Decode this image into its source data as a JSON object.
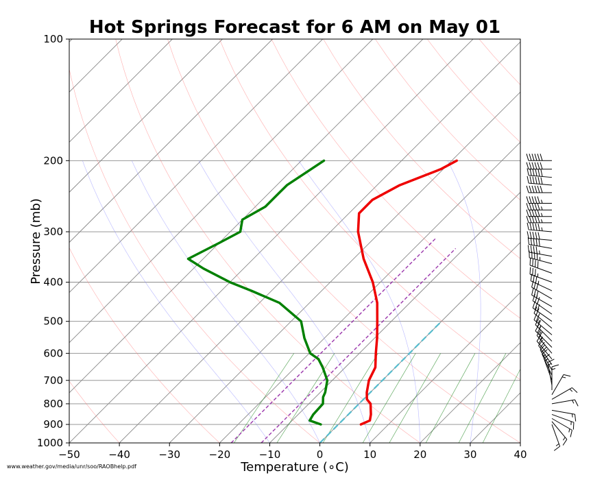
{
  "chart_data": {
    "type": "line",
    "subtype": "skew-T log-P sounding",
    "title": "Hot Springs Forecast for 6 AM on May 01",
    "xlabel": "Temperature (∘C)",
    "ylabel": "Pressure (mb)",
    "xlim": [
      -50,
      40
    ],
    "ylim": [
      1000,
      100
    ],
    "y_scale": "log",
    "grid": true,
    "x_ticks": [
      -50,
      -40,
      -30,
      -20,
      -10,
      0,
      10,
      20,
      30,
      40
    ],
    "x_tick_labels": [
      "−50",
      "−40",
      "−30",
      "−20",
      "−10",
      "0",
      "10",
      "20",
      "30",
      "40"
    ],
    "y_ticks": [
      1000,
      900,
      800,
      700,
      600,
      500,
      400,
      300,
      200,
      100
    ],
    "y_tick_labels": [
      "1000",
      "900",
      "800",
      "700",
      "600",
      "500",
      "400",
      "300",
      "200",
      "100"
    ],
    "series": [
      {
        "key": "temperature",
        "color": "#ee0000",
        "points": [
          [
            900,
            4.5
          ],
          [
            880,
            5.5
          ],
          [
            850,
            4.5
          ],
          [
            800,
            2.3
          ],
          [
            780,
            0.7
          ],
          [
            750,
            -0.7
          ],
          [
            700,
            -2.7
          ],
          [
            650,
            -4
          ],
          [
            600,
            -6.7
          ],
          [
            550,
            -9.5
          ],
          [
            500,
            -12.8
          ],
          [
            450,
            -16.5
          ],
          [
            400,
            -21.5
          ],
          [
            350,
            -28
          ],
          [
            300,
            -34.5
          ],
          [
            270,
            -38
          ],
          [
            250,
            -38
          ],
          [
            230,
            -35.5
          ],
          [
            210,
            -30.5
          ],
          [
            200,
            -29
          ]
        ]
      },
      {
        "key": "dewpoint",
        "color": "#008000",
        "points": [
          [
            900,
            -3.5
          ],
          [
            880,
            -6.5
          ],
          [
            850,
            -7
          ],
          [
            800,
            -7.2
          ],
          [
            770,
            -8.5
          ],
          [
            750,
            -9
          ],
          [
            700,
            -11
          ],
          [
            650,
            -14.5
          ],
          [
            620,
            -17
          ],
          [
            600,
            -19.8
          ],
          [
            550,
            -24
          ],
          [
            500,
            -28
          ],
          [
            450,
            -36
          ],
          [
            420,
            -44
          ],
          [
            400,
            -50
          ],
          [
            370,
            -58
          ],
          [
            350,
            -63
          ],
          [
            320,
            -60
          ],
          [
            300,
            -58
          ],
          [
            280,
            -60
          ],
          [
            260,
            -58
          ],
          [
            240,
            -58
          ],
          [
            230,
            -58
          ],
          [
            200,
            -55.5
          ]
        ]
      }
    ],
    "reference_lines": {
      "dry_adiabats": [
        -40,
        -20,
        0,
        20,
        40,
        60,
        80,
        100,
        120,
        140,
        160
      ],
      "moist_adiabats": [
        -10,
        0,
        10,
        20,
        30
      ],
      "mixing_ratios": [
        1,
        2,
        4,
        7,
        10,
        16,
        24,
        32
      ],
      "isotherms_spacing": 10
    },
    "parcel_lines": [
      {
        "key": "parcel-a",
        "color": "#9933aa",
        "start_temp": -17.7,
        "start_pressure": 1000,
        "end_pressure": 310
      },
      {
        "key": "parcel-b",
        "color": "#9933aa",
        "start_temp": -11.7,
        "start_pressure": 1000,
        "end_pressure": 330
      },
      {
        "key": "parcel-c",
        "color": "#55bbcc",
        "start_temp": 0,
        "start_pressure": 1000,
        "end_pressure": 500
      }
    ],
    "wind_barbs": [
      {
        "p": 200,
        "dir": 270,
        "spd": 60
      },
      {
        "p": 210,
        "dir": 270,
        "spd": 60
      },
      {
        "p": 220,
        "dir": 275,
        "spd": 60
      },
      {
        "p": 230,
        "dir": 275,
        "spd": 60
      },
      {
        "p": 240,
        "dir": 270,
        "spd": 60
      },
      {
        "p": 255,
        "dir": 270,
        "spd": 55
      },
      {
        "p": 265,
        "dir": 270,
        "spd": 55
      },
      {
        "p": 275,
        "dir": 270,
        "spd": 55
      },
      {
        "p": 285,
        "dir": 270,
        "spd": 55
      },
      {
        "p": 300,
        "dir": 275,
        "spd": 55
      },
      {
        "p": 315,
        "dir": 275,
        "spd": 50
      },
      {
        "p": 330,
        "dir": 280,
        "spd": 50
      },
      {
        "p": 345,
        "dir": 280,
        "spd": 45
      },
      {
        "p": 360,
        "dir": 285,
        "spd": 45
      },
      {
        "p": 380,
        "dir": 290,
        "spd": 40
      },
      {
        "p": 400,
        "dir": 290,
        "spd": 35
      },
      {
        "p": 420,
        "dir": 295,
        "spd": 35
      },
      {
        "p": 440,
        "dir": 300,
        "spd": 30
      },
      {
        "p": 460,
        "dir": 300,
        "spd": 30
      },
      {
        "p": 480,
        "dir": 305,
        "spd": 30
      },
      {
        "p": 500,
        "dir": 305,
        "spd": 30
      },
      {
        "p": 520,
        "dir": 310,
        "spd": 25
      },
      {
        "p": 540,
        "dir": 310,
        "spd": 25
      },
      {
        "p": 560,
        "dir": 315,
        "spd": 25
      },
      {
        "p": 580,
        "dir": 315,
        "spd": 25
      },
      {
        "p": 600,
        "dir": 320,
        "spd": 25
      },
      {
        "p": 620,
        "dir": 320,
        "spd": 20
      },
      {
        "p": 640,
        "dir": 325,
        "spd": 20
      },
      {
        "p": 660,
        "dir": 330,
        "spd": 20
      },
      {
        "p": 680,
        "dir": 335,
        "spd": 15
      },
      {
        "p": 700,
        "dir": 340,
        "spd": 15
      },
      {
        "p": 720,
        "dir": 350,
        "spd": 15
      },
      {
        "p": 740,
        "dir": 0,
        "spd": 15
      },
      {
        "p": 760,
        "dir": 30,
        "spd": 15
      },
      {
        "p": 780,
        "dir": 60,
        "spd": 15
      },
      {
        "p": 800,
        "dir": 80,
        "spd": 15
      },
      {
        "p": 830,
        "dir": 100,
        "spd": 15
      },
      {
        "p": 850,
        "dir": 110,
        "spd": 15
      },
      {
        "p": 870,
        "dir": 120,
        "spd": 15
      },
      {
        "p": 885,
        "dir": 140,
        "spd": 15
      },
      {
        "p": 900,
        "dir": 160,
        "spd": 15
      }
    ],
    "source_note": "www.weather.gov/media/unr/soo/RAOBhelp.pdf"
  }
}
